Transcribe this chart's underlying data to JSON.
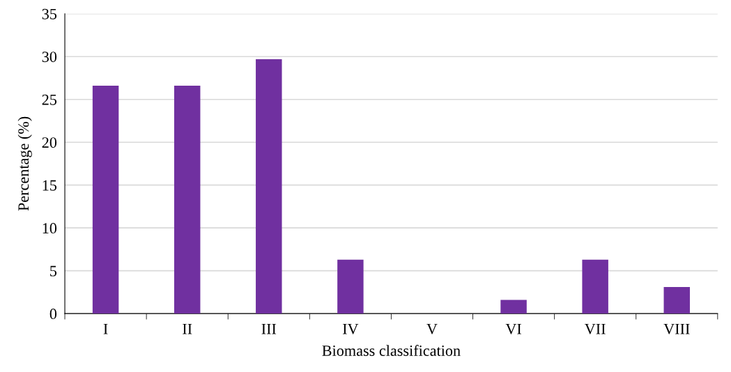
{
  "chart_data": {
    "type": "bar",
    "xlabel": "Biomass classification",
    "ylabel": "Percentage (%)",
    "categories": [
      "I",
      "II",
      "III",
      "IV",
      "V",
      "VI",
      "VII",
      "VIII"
    ],
    "values": [
      26.6,
      26.6,
      29.7,
      6.3,
      0,
      1.6,
      6.3,
      3.1
    ],
    "color": "#7030a0",
    "ylim": [
      0,
      35
    ],
    "yticks": [
      0,
      5,
      10,
      15,
      20,
      25,
      30,
      35
    ],
    "grid": "y",
    "legend": false
  }
}
